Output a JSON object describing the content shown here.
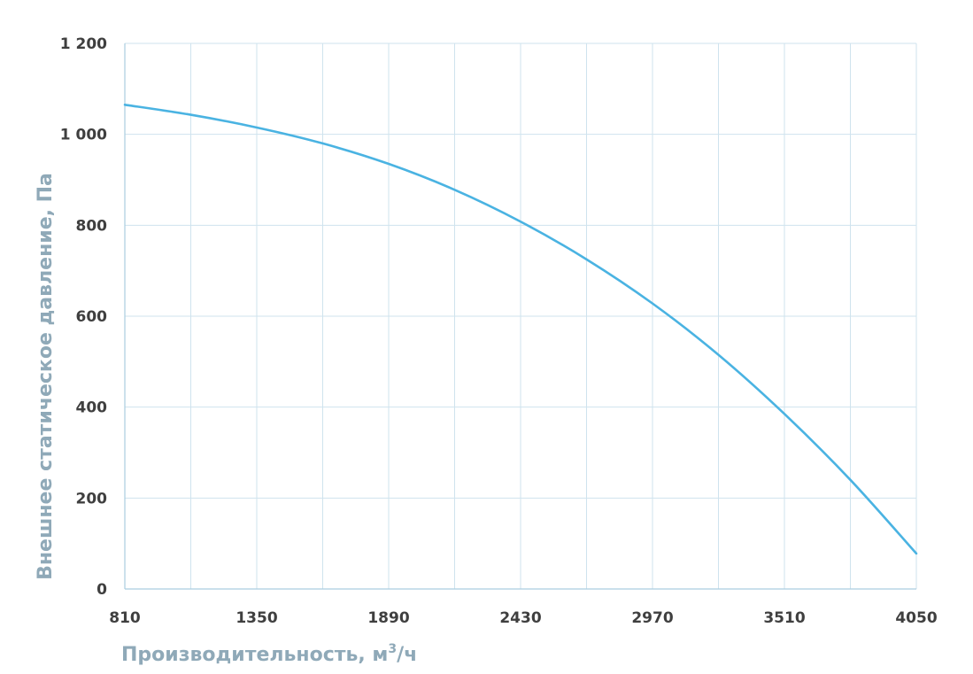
{
  "chart_data": {
    "type": "line",
    "xlabel_main": "Производительность, м",
    "xlabel_sup": "3",
    "xlabel_tail": "/ч",
    "ylabel": "Внешнее статическое давление, Па",
    "x_ticks": [
      "810",
      "1350",
      "1890",
      "2430",
      "2970",
      "3510",
      "4050"
    ],
    "y_ticks": [
      "0",
      "200",
      "400",
      "600",
      "800",
      "1 000",
      "1 200"
    ],
    "xlim": [
      810,
      4050
    ],
    "ylim": [
      0,
      1200
    ],
    "x_minor_step": 270,
    "grid": true,
    "line_color": "#4ab3e2",
    "series": [
      {
        "x": [
          810,
          1080,
          1350,
          1620,
          1890,
          2160,
          2430,
          2700,
          2970,
          3240,
          3510,
          3780,
          4050
        ],
        "y": [
          1065,
          1043,
          1015,
          980,
          935,
          878,
          808,
          725,
          628,
          515,
          385,
          240,
          78
        ]
      }
    ]
  }
}
